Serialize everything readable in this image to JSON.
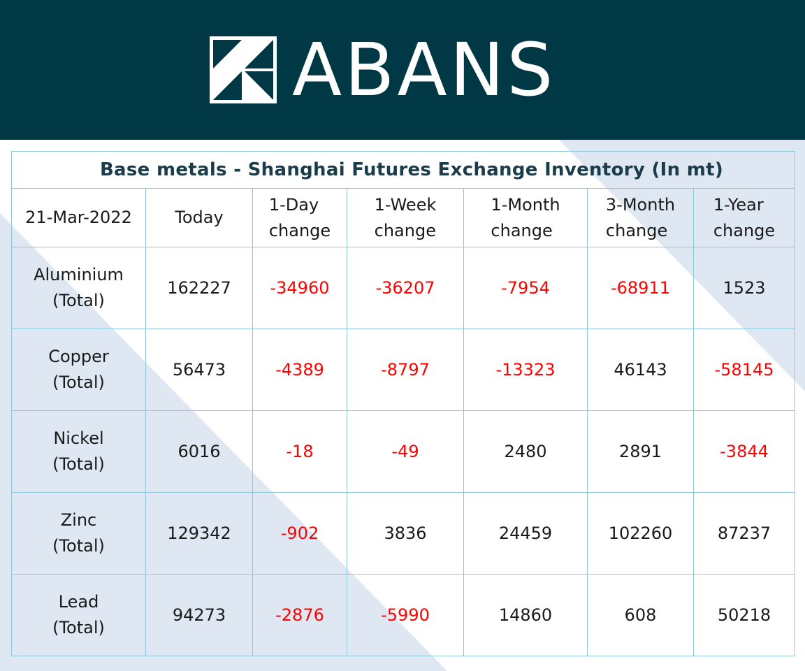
{
  "brand": {
    "name": "ABANS",
    "background": "#013846",
    "logo_icon": "abans-square-logo-icon"
  },
  "table": {
    "title": "Base metals - Shanghai Futures Exchange Inventory (In mt)",
    "date": "21-Mar-2022",
    "headers": {
      "today": "Today",
      "day": [
        "1-Day",
        "change"
      ],
      "week": [
        "1-Week",
        "change"
      ],
      "month": [
        "1-Month",
        "change"
      ],
      "month3": [
        "3-Month",
        "change"
      ],
      "year": [
        "1-Year",
        "change"
      ]
    },
    "rows": [
      {
        "metal": "Aluminium",
        "sub": "(Total)",
        "today": "162227",
        "day": "-34960",
        "week": "-36207",
        "month": "-7954",
        "month3": "-68911",
        "year": "1523"
      },
      {
        "metal": "Copper",
        "sub": "(Total)",
        "today": "56473",
        "day": "-4389",
        "week": "-8797",
        "month": "-13323",
        "month3": "46143",
        "year": "-58145"
      },
      {
        "metal": "Nickel",
        "sub": "(Total)",
        "today": "6016",
        "day": "-18",
        "week": "-49",
        "month": "2480",
        "month3": "2891",
        "year": "-3844"
      },
      {
        "metal": "Zinc",
        "sub": "(Total)",
        "today": "129342",
        "day": "-902",
        "week": "3836",
        "month": "24459",
        "month3": "102260",
        "year": "87237"
      },
      {
        "metal": "Lead",
        "sub": "(Total)",
        "today": "94273",
        "day": "-2876",
        "week": "-5990",
        "month": "14860",
        "month3": "608",
        "year": "50218"
      }
    ],
    "colors": {
      "negative": "#ff0000",
      "positive": "#1a1a1a",
      "grid": "#8fc7da",
      "band": "#dfe8f2"
    }
  }
}
